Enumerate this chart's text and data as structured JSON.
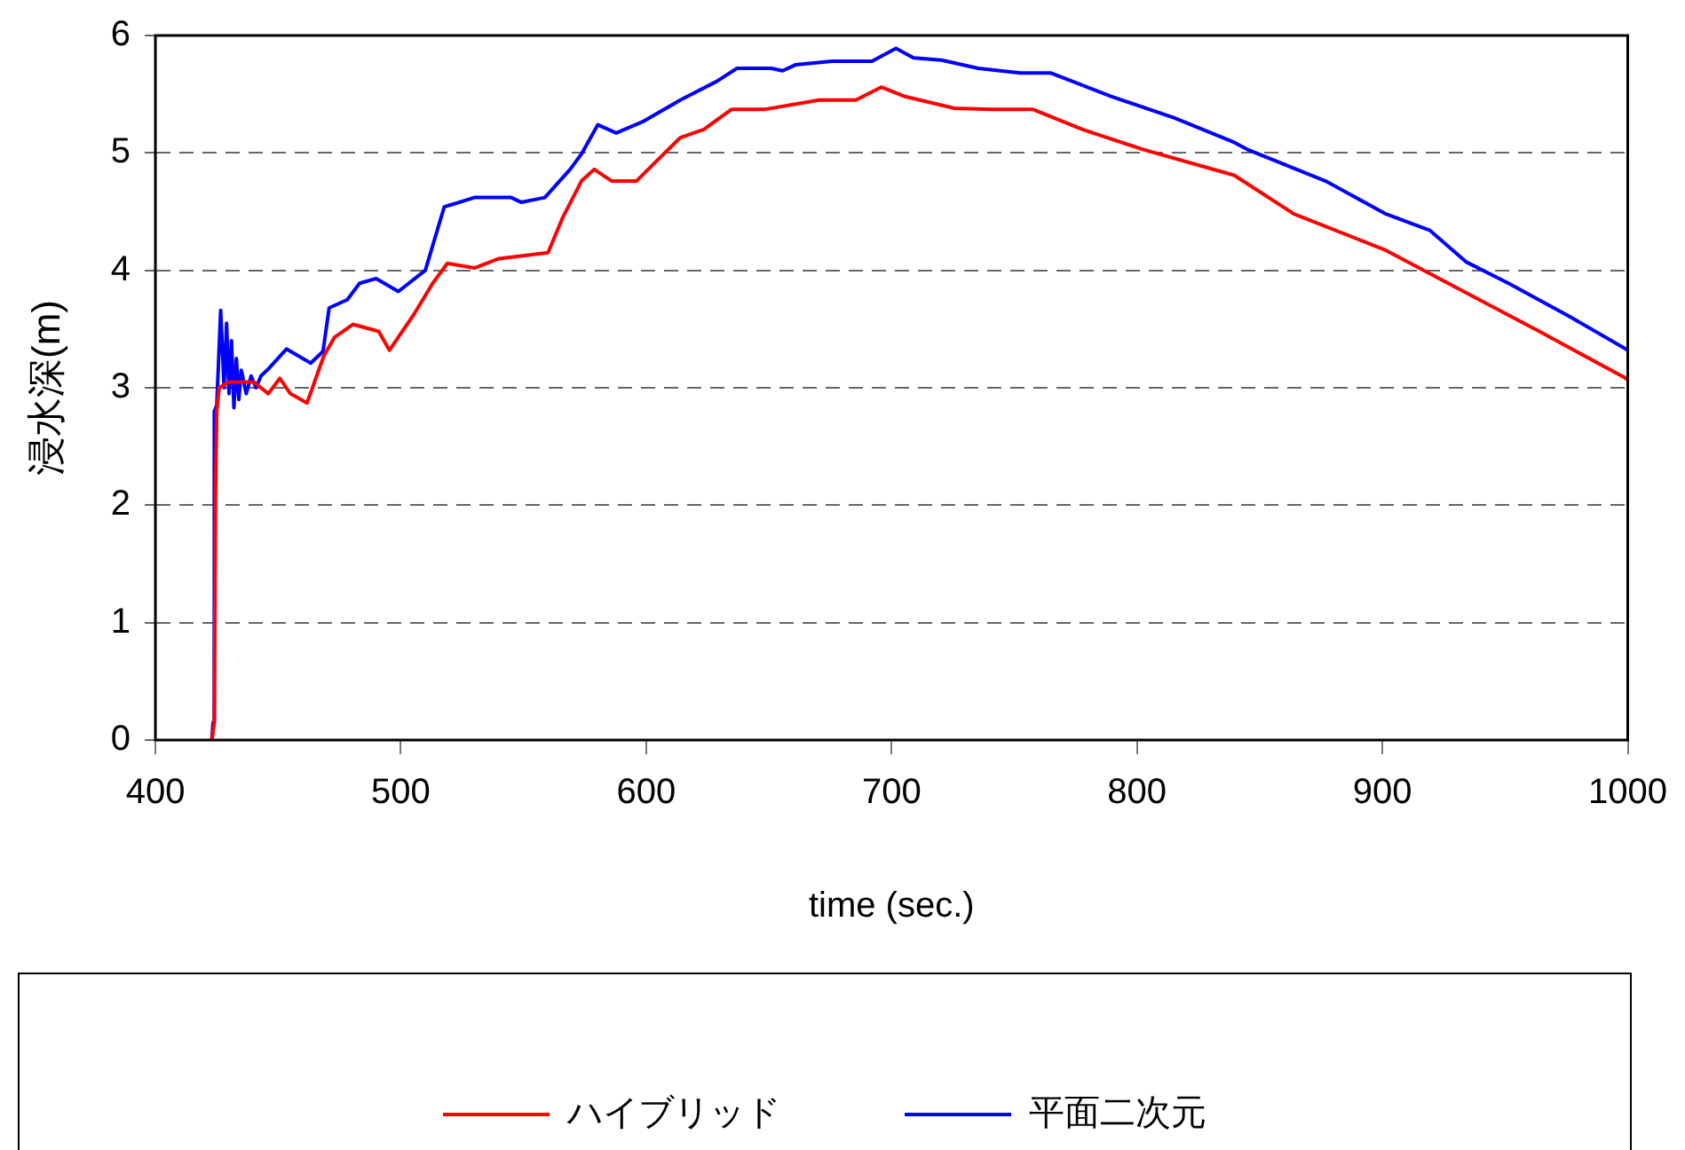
{
  "chart_data": {
    "type": "line",
    "xlabel": "time (sec.)",
    "ylabel": "浸水深(m)",
    "xlim": [
      400,
      1000
    ],
    "xticks": [
      400,
      500,
      600,
      700,
      800,
      900,
      1000
    ],
    "ylim": [
      0,
      6
    ],
    "yticks": [
      0,
      1,
      2,
      3,
      4,
      5,
      6
    ],
    "grid": "y",
    "legend": "bottom",
    "marker": "none",
    "line_style": "solid",
    "series": [
      {
        "name": "ハイブリッド",
        "color": "#ff0000",
        "x": [
          423,
          424,
          424.5,
          425,
          426,
          430,
          440,
          446,
          450.7,
          455,
          461.8,
          468.6,
          473,
          480.5,
          491,
          495.4,
          505.8,
          513,
          519,
          530,
          540,
          560,
          566,
          573.6,
          578.8,
          586,
          596,
          602.7,
          613.9,
          623.5,
          634.7,
          648,
          670.5,
          685.4,
          695.8,
          705.5,
          725.6,
          740.5,
          757.7,
          777.8,
          802.4,
          839.6,
          864,
          901.5,
          926.8,
          964,
          998.4,
          1000
        ],
        "values": [
          0,
          0.15,
          2.1,
          2.8,
          3.0,
          3.05,
          3.05,
          2.95,
          3.08,
          2.95,
          2.87,
          3.27,
          3.43,
          3.54,
          3.48,
          3.32,
          3.64,
          3.89,
          4.06,
          4.02,
          4.1,
          4.15,
          4.45,
          4.76,
          4.86,
          4.76,
          4.76,
          4.9,
          5.13,
          5.2,
          5.37,
          5.37,
          5.45,
          5.45,
          5.56,
          5.48,
          5.38,
          5.37,
          5.37,
          5.2,
          5.03,
          4.81,
          4.48,
          4.17,
          3.89,
          3.48,
          3.09,
          3.07
        ]
      },
      {
        "name": "平面二次元",
        "color": "#0000ff",
        "x": [
          423,
          423.5,
          424,
          425,
          426.6,
          428,
          429,
          430,
          431,
          432,
          433,
          434,
          435,
          437,
          439,
          441,
          443,
          446,
          453.4,
          463.3,
          468.3,
          470.8,
          478.2,
          483.2,
          490,
          499,
          510,
          517.7,
          530,
          545,
          549,
          558.7,
          569,
          573.6,
          580.3,
          587.8,
          599,
          613.9,
          628.8,
          637,
          651,
          655.6,
          660.8,
          675.7,
          692,
          701.8,
          709,
          720.4,
          735.3,
          752.5,
          765,
          789.7,
          815,
          839.6,
          844.9,
          876.9,
          901.5,
          919.4,
          934.3,
          951.4,
          976,
          998.4,
          1000
        ],
        "values": [
          0,
          0.15,
          2.8,
          2.85,
          3.66,
          3.0,
          3.55,
          2.95,
          3.4,
          2.83,
          3.25,
          2.9,
          3.15,
          2.95,
          3.1,
          3.0,
          3.1,
          3.16,
          3.33,
          3.21,
          3.31,
          3.68,
          3.75,
          3.89,
          3.93,
          3.82,
          4.0,
          4.54,
          4.62,
          4.62,
          4.58,
          4.62,
          4.86,
          4.99,
          5.24,
          5.17,
          5.27,
          5.45,
          5.61,
          5.72,
          5.72,
          5.7,
          5.75,
          5.78,
          5.78,
          5.89,
          5.81,
          5.79,
          5.72,
          5.68,
          5.68,
          5.48,
          5.3,
          5.09,
          5.03,
          4.76,
          4.48,
          4.34,
          4.07,
          3.89,
          3.61,
          3.34,
          3.32
        ]
      }
    ]
  }
}
